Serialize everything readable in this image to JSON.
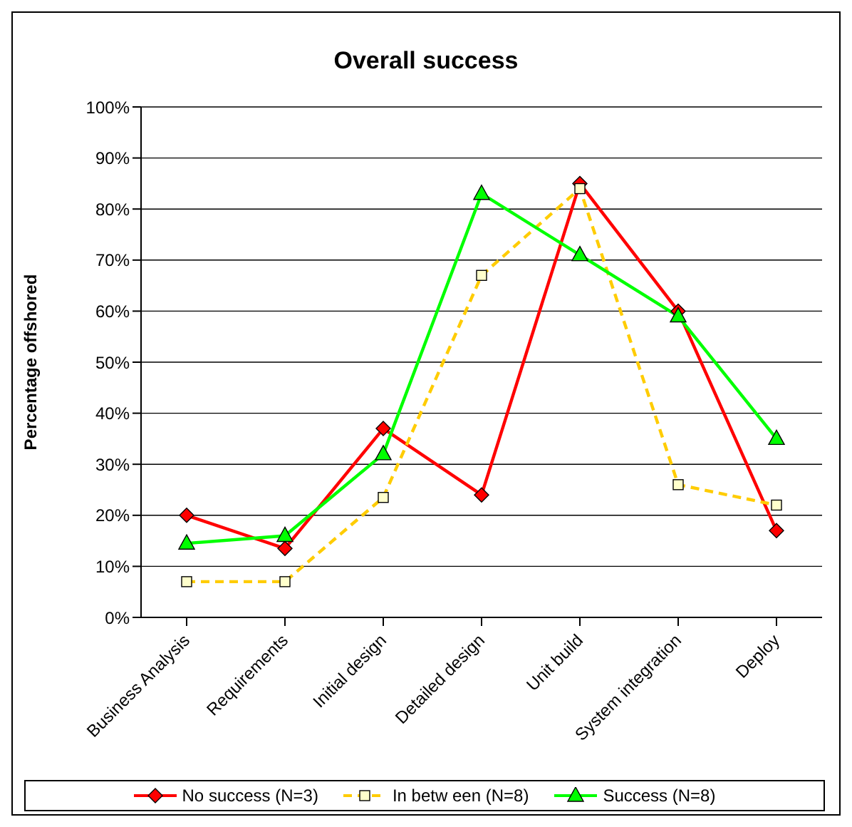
{
  "chart_data": {
    "type": "line",
    "title": "Overall success",
    "ylabel": "Percentage offshored",
    "categories": [
      "Business Analysis",
      "Requirements",
      "Initial design",
      "Detailed design",
      "Unit build",
      "System integration",
      "Deploy"
    ],
    "series": [
      {
        "name": "No success (N=3)",
        "color": "#ff0000",
        "marker": "diamond",
        "line_style": "solid",
        "values": [
          20,
          13.5,
          37,
          24,
          85,
          60,
          17
        ]
      },
      {
        "name": "In betw een (N=8)",
        "color": "#ffcc00",
        "marker": "square",
        "line_style": "dashed",
        "values": [
          7,
          7,
          23.5,
          67,
          84,
          26,
          22
        ]
      },
      {
        "name": "Success (N=8)",
        "color": "#00ff00",
        "marker": "triangle",
        "line_style": "solid",
        "values": [
          14.5,
          16,
          32,
          83,
          71,
          59,
          35
        ]
      }
    ],
    "ylim": [
      0,
      100
    ],
    "yticks": [
      {
        "value": 0,
        "label": "0%"
      },
      {
        "value": 10,
        "label": "10%"
      },
      {
        "value": 20,
        "label": "20%"
      },
      {
        "value": 30,
        "label": "30%"
      },
      {
        "value": 40,
        "label": "40%"
      },
      {
        "value": 50,
        "label": "50%"
      },
      {
        "value": 60,
        "label": "60%"
      },
      {
        "value": 70,
        "label": "70%"
      },
      {
        "value": 80,
        "label": "80%"
      },
      {
        "value": 90,
        "label": "90%"
      },
      {
        "value": 100,
        "label": "100%"
      }
    ],
    "grid": "y",
    "legend": "bottom"
  }
}
